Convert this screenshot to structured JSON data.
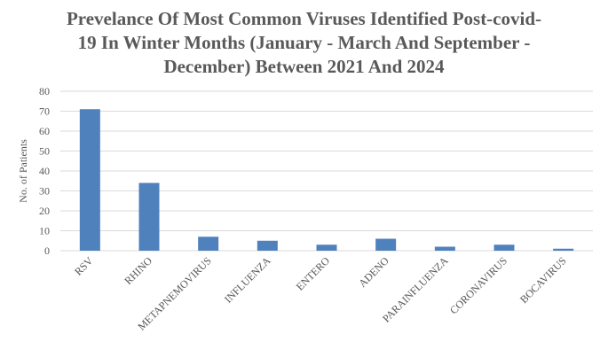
{
  "chart_data": {
    "type": "bar",
    "title": "Prevelance Of Most Common Viruses Identified Post-covid-19 In Winter Months (January - March And September - December) Between 2021 And 2024",
    "y_label": "No. of Patients",
    "categories": [
      "RSV",
      "RHINO",
      "METAPNEMOVIRUS",
      "INFLUENZA",
      "ENTERO",
      "ADENO",
      "PARAINFLUENZA",
      "CORONAVIRUS",
      "BOCAVIRUS"
    ],
    "values": [
      71,
      34,
      7,
      5,
      3,
      6,
      2,
      3,
      1
    ],
    "color": "#4f81bd",
    "ylim": [
      0,
      80
    ],
    "yticks": [
      0,
      10,
      20,
      30,
      40,
      50,
      60,
      70,
      80
    ],
    "grid": true
  }
}
